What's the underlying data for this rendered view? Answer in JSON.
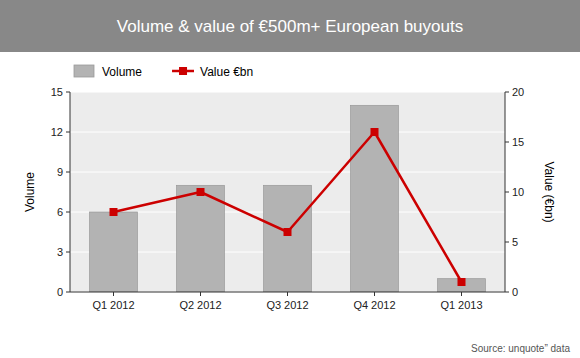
{
  "chart_data": {
    "type": "bar",
    "title": "Volume & value of €500m+ European buyouts",
    "categories": [
      "Q1 2012",
      "Q2 2012",
      "Q3 2012",
      "Q4 2012",
      "Q1 2013"
    ],
    "series": [
      {
        "name": "Volume",
        "type": "bar",
        "color": "#b3b3b3",
        "values": [
          6,
          8,
          8,
          14,
          1
        ]
      },
      {
        "name": "Value €bn",
        "type": "line",
        "color": "#cc0000",
        "marker": "square",
        "axis": "y2",
        "values": [
          8,
          10,
          6,
          16,
          1
        ]
      }
    ],
    "ylabel": "Volume",
    "y2label": "Value (€bn)",
    "ylim": [
      0,
      15
    ],
    "yticks": [
      0,
      3,
      6,
      9,
      12,
      15
    ],
    "y2lim": [
      0,
      20
    ],
    "y2ticks": [
      0,
      5,
      10,
      15,
      20
    ],
    "grid": true,
    "legend": "top left",
    "annotation": "Source: unquote” data"
  }
}
